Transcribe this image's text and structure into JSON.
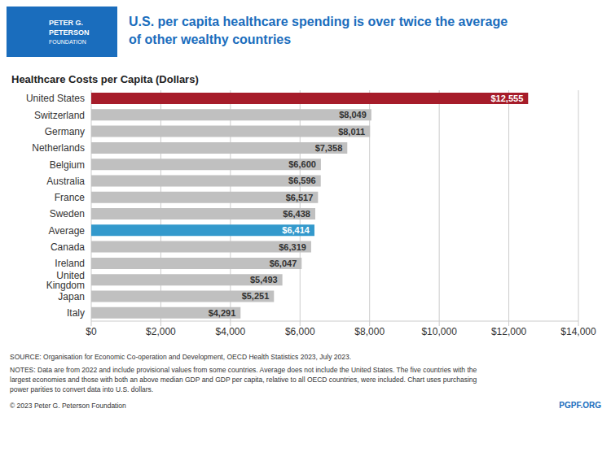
{
  "chart_data": {
    "type": "bar",
    "orientation": "horizontal",
    "title": "U.S. per capita healthcare spending is over twice the average\nof other wealthy countries",
    "subtitle": "Healthcare Costs per Capita (Dollars)",
    "categories": [
      "Italy",
      "Japan",
      "United Kingdom",
      "Ireland",
      "Canada",
      "Average",
      "Sweden",
      "France",
      "Australia",
      "Belgium",
      "Netherlands",
      "Germany",
      "Switzerland",
      "United States"
    ],
    "values": [
      4291,
      5251,
      5493,
      6047,
      6319,
      6414,
      6438,
      6517,
      6596,
      6600,
      7358,
      8011,
      8049,
      12555
    ],
    "value_labels": [
      "$4,291",
      "$5,251",
      "$5,493",
      "$6,047",
      "$6,319",
      "$6,414",
      "$6,438",
      "$6,517",
      "$6,596",
      "$6,600",
      "$7,358",
      "$8,011",
      "$8,049",
      "$12,555"
    ],
    "data_labels": true,
    "colors": [
      "#c0c0c0",
      "#c0c0c0",
      "#c0c0c0",
      "#c0c0c0",
      "#c0c0c0",
      "#3399cc",
      "#c0c0c0",
      "#c0c0c0",
      "#c0c0c0",
      "#c0c0c0",
      "#c0c0c0",
      "#c0c0c0",
      "#c0c0c0",
      "#a61c2a"
    ],
    "xlim": [
      0,
      14000
    ],
    "xticks": [
      {
        "value": 0,
        "label": "$0"
      },
      {
        "value": 2000,
        "label": "$2,000"
      },
      {
        "value": 4000,
        "label": "$4,000"
      },
      {
        "value": 6000,
        "label": "$6,000"
      },
      {
        "value": 8000,
        "label": "$8,000"
      },
      {
        "value": 10000,
        "label": "$10,000"
      },
      {
        "value": 12000,
        "label": "$12,000"
      },
      {
        "value": 14000,
        "label": "$14,000"
      }
    ],
    "grid": true,
    "annotations": [
      "PETER G.",
      "PETERSON",
      "FOUNDATION",
      "SOURCE: Organisation for Economic Co-operation and Development, OECD Health Statistics 2023, July 2023.",
      "NOTES: Data are from 2022 and include provisional values from some countries. Average does not include the United States. The five countries with the\nlargest economies and those with both an above median GDP and GDP per capita, relative to all OECD countries, were included. Chart uses purchasing\npower parities to convert data into U.S. dollars.",
      "© 2023 Peter G. Peterson Foundation",
      "PGPF.ORG"
    ]
  }
}
